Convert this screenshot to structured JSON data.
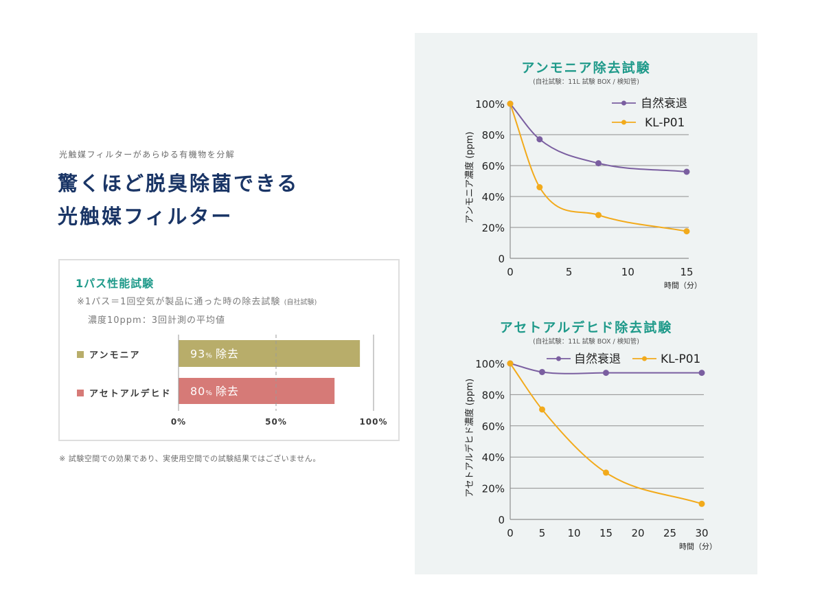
{
  "header": {
    "subtitle": "光触媒フィルターがあらゆる有機物を分解",
    "headline_line1": "驚くほど脱臭除菌できる",
    "headline_line2": "光触媒フィルター"
  },
  "one_pass_test": {
    "title": "1パス性能試験",
    "note_line1": "※1パス＝1回空気が製品に通った時の除去試験",
    "note_line1_small": "(自社試験)",
    "note_line2": "濃度10ppm：3回計測の平均値"
  },
  "footnote": "※ 試験空間での効果であり、実使用空間での試験結果ではございません。",
  "chart_data": [
    {
      "type": "bar",
      "orientation": "horizontal",
      "title": "1パス性能試験",
      "categories": [
        "アンモニア",
        "アセトアルデヒド"
      ],
      "values": [
        93,
        80
      ],
      "value_labels": [
        "93",
        "80"
      ],
      "value_unit": "%",
      "value_suffix": "除去",
      "colors": [
        "#b8ad6a",
        "#d67a77"
      ],
      "xlim": [
        0,
        100
      ],
      "xticks": [
        "0%",
        "50%",
        "100%"
      ],
      "xtick_values": [
        0,
        50,
        100
      ],
      "grid": "dashed line at 50%, solid at 0% and 100%"
    },
    {
      "type": "line",
      "title": "アンモニア除去試験",
      "subtitle": "(自社試験：11L 試験 BOX / 検知管)",
      "xlabel": "時間（分）",
      "ylabel": "アンモニア濃度 (ppm)",
      "xlim": [
        0,
        15
      ],
      "ylim": [
        0,
        100
      ],
      "xticks": [
        0,
        5,
        10,
        15
      ],
      "yticks": [
        0,
        20,
        40,
        60,
        80,
        100
      ],
      "ytick_labels": [
        "0",
        "20%",
        "40%",
        "60%",
        "80%",
        "100%"
      ],
      "grid": true,
      "legend": "top-right",
      "series": [
        {
          "name": "自然衰退",
          "color": "#7a5ea0",
          "x": [
            0,
            2.5,
            7.5,
            15
          ],
          "y": [
            100,
            77,
            61.5,
            56
          ]
        },
        {
          "name": "KL-P01",
          "color": "#f2aa1b",
          "x": [
            0,
            2.5,
            7.5,
            15
          ],
          "y": [
            100,
            46,
            28,
            17.5
          ]
        }
      ]
    },
    {
      "type": "line",
      "title": "アセトアルデヒド除去試験",
      "subtitle": "(自社試験：11L 試験 BOX / 検知管)",
      "xlabel": "時間（分）",
      "ylabel": "アセトアルデヒド濃度 (ppm)",
      "xlim": [
        0,
        30
      ],
      "ylim": [
        0,
        100
      ],
      "xticks": [
        0,
        5,
        10,
        15,
        20,
        25,
        30
      ],
      "yticks": [
        0,
        20,
        40,
        60,
        80,
        100
      ],
      "ytick_labels": [
        "0",
        "20%",
        "40%",
        "60%",
        "80%",
        "100%"
      ],
      "grid": true,
      "legend": "top",
      "series": [
        {
          "name": "自然衰退",
          "color": "#7a5ea0",
          "x": [
            0,
            5,
            15,
            30
          ],
          "y": [
            100,
            94.5,
            94,
            94
          ]
        },
        {
          "name": "KL-P01",
          "color": "#f2aa1b",
          "x": [
            0,
            5,
            15,
            30
          ],
          "y": [
            100,
            70.5,
            30,
            10
          ]
        }
      ]
    }
  ]
}
